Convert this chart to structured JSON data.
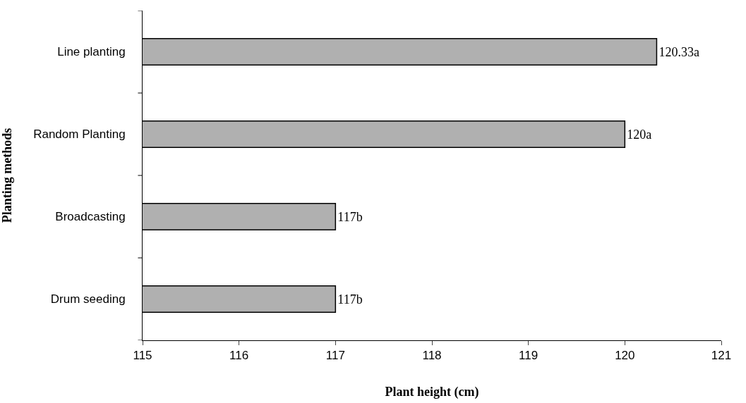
{
  "chart_data": {
    "type": "bar",
    "orientation": "horizontal",
    "xlabel": "Plant height (cm)",
    "ylabel": "Planting methods",
    "categories": [
      "Line planting",
      "Random Planting",
      "Broadcasting",
      "Drum seeding"
    ],
    "values": [
      120.33,
      120,
      117,
      117
    ],
    "value_labels": [
      "120.33a",
      "120a",
      "117b",
      "117b"
    ],
    "color": "#b0b0b0",
    "xlim": [
      115,
      121
    ],
    "xticks": [
      115,
      116,
      117,
      118,
      119,
      120,
      121
    ],
    "grid": false
  }
}
